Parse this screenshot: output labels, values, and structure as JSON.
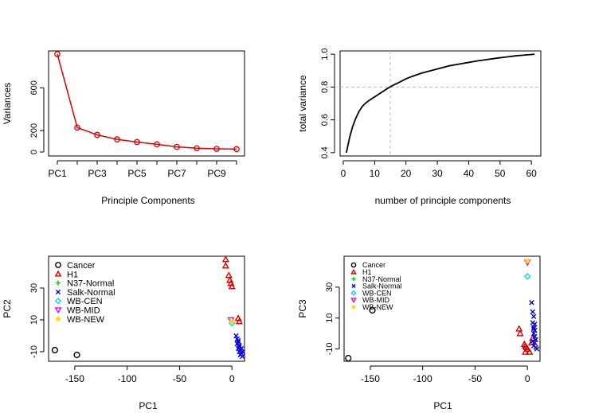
{
  "chart_data": [
    {
      "type": "line",
      "title": "",
      "xlabel": "Principle Components",
      "ylabel": "Variances",
      "x_tick_labels": [
        "PC1",
        "PC3",
        "PC5",
        "PC7",
        "PC9"
      ],
      "y_ticks": [
        0,
        200,
        600
      ],
      "x": [
        1,
        2,
        3,
        4,
        5,
        6,
        7,
        8,
        9,
        10
      ],
      "values": [
        915,
        228,
        160,
        118,
        93,
        72,
        48,
        35,
        30,
        27
      ],
      "ylim": [
        0,
        915
      ],
      "colors": {
        "line": "#dd0000"
      }
    },
    {
      "type": "line",
      "title": "",
      "xlabel": "number of principle components",
      "ylabel": "total variance",
      "x_ticks": [
        0,
        10,
        20,
        30,
        40,
        50,
        60
      ],
      "y_ticks": [
        0.4,
        0.6,
        0.8,
        1.0
      ],
      "x": [
        1,
        2,
        3,
        4,
        5,
        6,
        7,
        8,
        10,
        12,
        14,
        16,
        18,
        20,
        22,
        25,
        28,
        31,
        34,
        37,
        40,
        43,
        46,
        49,
        52,
        55,
        58,
        60,
        61
      ],
      "values": [
        0.4,
        0.49,
        0.56,
        0.61,
        0.65,
        0.68,
        0.7,
        0.715,
        0.74,
        0.765,
        0.79,
        0.812,
        0.83,
        0.85,
        0.865,
        0.885,
        0.9,
        0.915,
        0.93,
        0.94,
        0.95,
        0.96,
        0.968,
        0.976,
        0.983,
        0.99,
        0.995,
        0.998,
        1.0
      ],
      "reference_lines": {
        "x": 15,
        "y": 0.8
      },
      "xlim": [
        -1,
        63
      ],
      "ylim": [
        0.38,
        1.02
      ]
    },
    {
      "type": "scatter",
      "title": "",
      "xlabel": "PC1",
      "ylabel": "PC2",
      "x_ticks": [
        -150,
        -100,
        -50,
        0
      ],
      "y_ticks": [
        -10,
        10,
        30
      ],
      "xlim": [
        -175,
        12
      ],
      "ylim": [
        -16,
        50
      ],
      "legend_position": "top-left",
      "series": [
        {
          "name": "Cancer",
          "color": "#000000",
          "marker": "circle",
          "points": [
            [
              -169,
              -9
            ],
            [
              -148,
              -12
            ]
          ]
        },
        {
          "name": "H1",
          "color": "#dd0000",
          "marker": "triangle-up",
          "points": [
            [
              -6,
              48
            ],
            [
              -6,
              44
            ],
            [
              -3,
              38
            ],
            [
              -2,
              35
            ],
            [
              -1,
              33
            ],
            [
              0,
              31
            ],
            [
              6,
              11
            ],
            [
              7,
              9
            ]
          ]
        },
        {
          "name": "N37-Normal",
          "color": "#00cc00",
          "marker": "plus",
          "points": []
        },
        {
          "name": "Salk-Normal",
          "color": "#0000dd",
          "marker": "x",
          "points": [
            [
              4,
              0
            ],
            [
              5,
              -2
            ],
            [
              6,
              -4
            ],
            [
              5,
              -5
            ],
            [
              7,
              -6
            ],
            [
              6,
              -8
            ],
            [
              8,
              -9
            ],
            [
              7,
              -10
            ],
            [
              9,
              -11
            ],
            [
              8,
              -12
            ],
            [
              10,
              -13
            ],
            [
              6,
              -3
            ],
            [
              7,
              -7
            ],
            [
              9,
              -8
            ],
            [
              10,
              -10
            ]
          ]
        },
        {
          "name": "WB-CEN",
          "color": "#00dddd",
          "marker": "diamond",
          "points": [
            [
              0,
              8
            ]
          ]
        },
        {
          "name": "WB-MID",
          "color": "#ee00ee",
          "marker": "triangle-down",
          "points": [
            [
              -1,
              10
            ]
          ]
        },
        {
          "name": "WB-NEW",
          "color": "#ffdd00",
          "marker": "star",
          "points": [
            [
              0,
              9
            ]
          ]
        }
      ]
    },
    {
      "type": "scatter",
      "title": "",
      "xlabel": "PC1",
      "ylabel": "PC3",
      "x_ticks": [
        -150,
        -100,
        -50,
        0
      ],
      "y_ticks": [
        -10,
        10,
        30
      ],
      "xlim": [
        -175,
        12
      ],
      "ylim": [
        -18,
        50
      ],
      "legend_position": "top-left",
      "series": [
        {
          "name": "Cancer",
          "color": "#000000",
          "marker": "circle",
          "points": [
            [
              -171,
              -16
            ],
            [
              -148,
              15
            ]
          ]
        },
        {
          "name": "H1",
          "color": "#dd0000",
          "marker": "triangle-up",
          "points": [
            [
              -8,
              3
            ],
            [
              -7,
              0
            ],
            [
              -3,
              -7
            ],
            [
              -2,
              -8
            ],
            [
              -1,
              -9
            ],
            [
              0,
              -10
            ],
            [
              2,
              -12
            ],
            [
              -2,
              -12
            ],
            [
              4,
              -6
            ],
            [
              5,
              -3
            ]
          ]
        },
        {
          "name": "N37-Normal",
          "color": "#00cc00",
          "marker": "plus",
          "points": []
        },
        {
          "name": "Salk-Normal",
          "color": "#0000dd",
          "marker": "x",
          "points": [
            [
              4,
              20
            ],
            [
              5,
              14
            ],
            [
              6,
              11
            ],
            [
              5,
              7
            ],
            [
              6,
              4
            ],
            [
              7,
              2
            ],
            [
              6,
              0
            ],
            [
              7,
              -2
            ],
            [
              8,
              -4
            ],
            [
              7,
              -6
            ],
            [
              6,
              -8
            ],
            [
              8,
              -9
            ],
            [
              9,
              -10
            ],
            [
              5,
              -5
            ],
            [
              6,
              3
            ],
            [
              7,
              6
            ]
          ]
        },
        {
          "name": "WB-CEN",
          "color": "#00dddd",
          "marker": "diamond",
          "points": [
            [
              0,
              37
            ]
          ]
        },
        {
          "name": "WB-MID",
          "color": "#ee00ee",
          "marker": "triangle-down",
          "points": [
            [
              0,
              46
            ]
          ]
        },
        {
          "name": "WB-NEW",
          "color": "#ffdd00",
          "marker": "star",
          "points": [
            [
              0,
              47
            ]
          ]
        }
      ]
    }
  ]
}
